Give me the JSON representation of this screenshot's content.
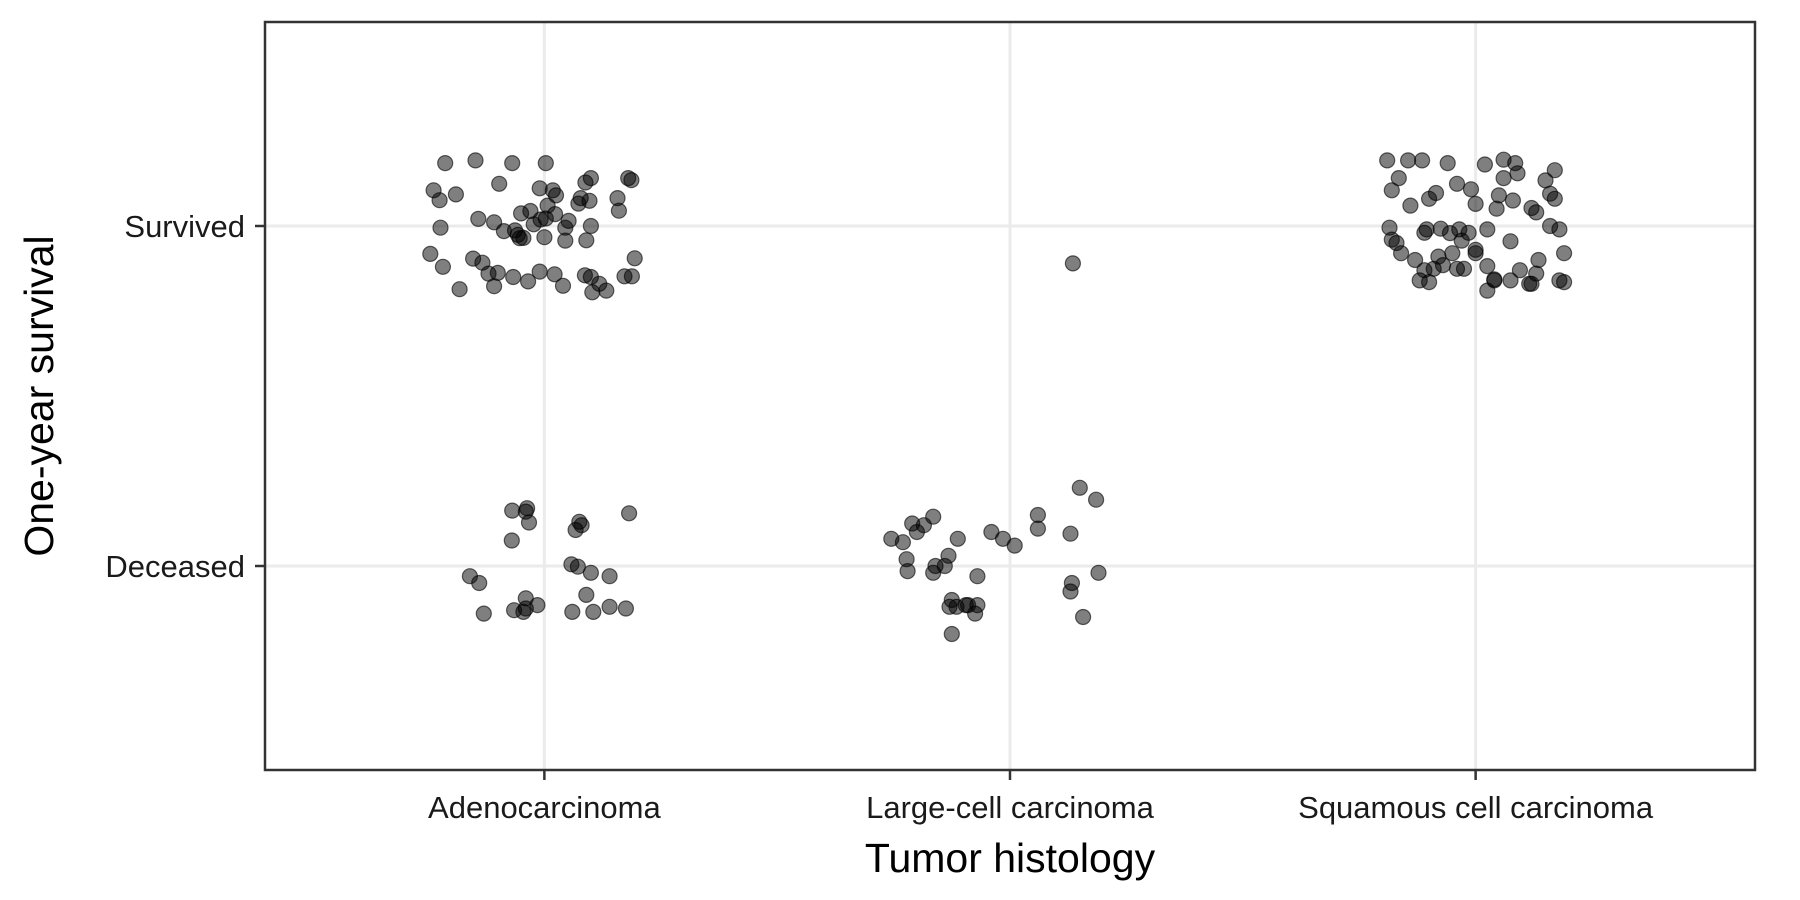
{
  "chart_data": {
    "type": "scatter",
    "subtype": "jitter",
    "title": "",
    "xlabel": "Tumor histology",
    "ylabel": "One-year survival",
    "categories": [
      "Adenocarcinoma",
      "Large-cell carcinoma",
      "Squamous cell carcinoma"
    ],
    "y_levels": [
      "Deceased",
      "Survived"
    ],
    "xlim": [
      0.4,
      3.6
    ],
    "ylim": [
      0.4,
      2.6
    ],
    "grid": true,
    "legend": "none",
    "point_color": "#000000",
    "point_alpha": 0.5,
    "points": [
      {
        "x": 0.762,
        "y": 2.105
      },
      {
        "x": 0.787,
        "y": 2.185
      },
      {
        "x": 0.81,
        "y": 2.093
      },
      {
        "x": 0.852,
        "y": 2.193
      },
      {
        "x": 0.931,
        "y": 2.185
      },
      {
        "x": 1.003,
        "y": 2.185
      },
      {
        "x": 0.775,
        "y": 2.076
      },
      {
        "x": 0.903,
        "y": 2.124
      },
      {
        "x": 0.99,
        "y": 2.111
      },
      {
        "x": 1.018,
        "y": 2.105
      },
      {
        "x": 1.088,
        "y": 2.128
      },
      {
        "x": 1.1,
        "y": 2.141
      },
      {
        "x": 1.18,
        "y": 2.141
      },
      {
        "x": 1.187,
        "y": 2.135
      },
      {
        "x": 1.157,
        "y": 2.082
      },
      {
        "x": 1.16,
        "y": 2.045
      },
      {
        "x": 1.078,
        "y": 2.082
      },
      {
        "x": 1.025,
        "y": 2.09
      },
      {
        "x": 1.007,
        "y": 2.06
      },
      {
        "x": 0.97,
        "y": 2.044
      },
      {
        "x": 0.95,
        "y": 2.037
      },
      {
        "x": 0.858,
        "y": 2.021
      },
      {
        "x": 0.777,
        "y": 1.995
      },
      {
        "x": 0.892,
        "y": 2.011
      },
      {
        "x": 0.937,
        "y": 1.987
      },
      {
        "x": 0.977,
        "y": 2.005
      },
      {
        "x": 0.992,
        "y": 2.019
      },
      {
        "x": 1.003,
        "y": 2.022
      },
      {
        "x": 1.023,
        "y": 2.035
      },
      {
        "x": 1.073,
        "y": 2.066
      },
      {
        "x": 1.097,
        "y": 2.074
      },
      {
        "x": 1.045,
        "y": 1.995
      },
      {
        "x": 1.052,
        "y": 2.015
      },
      {
        "x": 1.1,
        "y": 2.0
      },
      {
        "x": 0.913,
        "y": 1.985
      },
      {
        "x": 0.947,
        "y": 1.964
      },
      {
        "x": 0.943,
        "y": 1.974
      },
      {
        "x": 0.955,
        "y": 1.965
      },
      {
        "x": 1.0,
        "y": 1.967
      },
      {
        "x": 1.045,
        "y": 1.957
      },
      {
        "x": 1.09,
        "y": 1.958
      },
      {
        "x": 0.755,
        "y": 1.918
      },
      {
        "x": 0.847,
        "y": 1.904
      },
      {
        "x": 0.867,
        "y": 1.892
      },
      {
        "x": 0.9,
        "y": 1.862
      },
      {
        "x": 0.933,
        "y": 1.85
      },
      {
        "x": 0.99,
        "y": 1.866
      },
      {
        "x": 1.022,
        "y": 1.858
      },
      {
        "x": 1.087,
        "y": 1.855
      },
      {
        "x": 1.1,
        "y": 1.85
      },
      {
        "x": 0.892,
        "y": 1.823
      },
      {
        "x": 0.965,
        "y": 1.837
      },
      {
        "x": 1.04,
        "y": 1.824
      },
      {
        "x": 1.118,
        "y": 1.83
      },
      {
        "x": 1.133,
        "y": 1.81
      },
      {
        "x": 1.188,
        "y": 1.852
      },
      {
        "x": 1.172,
        "y": 1.852
      },
      {
        "x": 1.103,
        "y": 1.805
      },
      {
        "x": 0.818,
        "y": 1.814
      },
      {
        "x": 0.88,
        "y": 1.86
      },
      {
        "x": 0.782,
        "y": 1.88
      },
      {
        "x": 1.194,
        "y": 1.905
      },
      {
        "x": 2.135,
        "y": 1.89
      },
      {
        "x": 2.81,
        "y": 2.193
      },
      {
        "x": 2.855,
        "y": 2.193
      },
      {
        "x": 2.885,
        "y": 2.193
      },
      {
        "x": 2.94,
        "y": 2.185
      },
      {
        "x": 3.02,
        "y": 2.181
      },
      {
        "x": 3.06,
        "y": 2.195
      },
      {
        "x": 3.085,
        "y": 2.185
      },
      {
        "x": 3.06,
        "y": 2.141
      },
      {
        "x": 3.09,
        "y": 2.155
      },
      {
        "x": 3.17,
        "y": 2.164
      },
      {
        "x": 3.15,
        "y": 2.134
      },
      {
        "x": 2.835,
        "y": 2.141
      },
      {
        "x": 2.96,
        "y": 2.124
      },
      {
        "x": 2.82,
        "y": 2.105
      },
      {
        "x": 2.9,
        "y": 2.08
      },
      {
        "x": 2.86,
        "y": 2.06
      },
      {
        "x": 2.915,
        "y": 2.097
      },
      {
        "x": 2.99,
        "y": 2.108
      },
      {
        "x": 3.05,
        "y": 2.09
      },
      {
        "x": 3.08,
        "y": 2.075
      },
      {
        "x": 3.0,
        "y": 2.065
      },
      {
        "x": 3.045,
        "y": 2.051
      },
      {
        "x": 3.12,
        "y": 2.053
      },
      {
        "x": 3.16,
        "y": 2.095
      },
      {
        "x": 3.17,
        "y": 2.08
      },
      {
        "x": 3.13,
        "y": 2.04
      },
      {
        "x": 2.815,
        "y": 1.995
      },
      {
        "x": 2.895,
        "y": 1.99
      },
      {
        "x": 2.925,
        "y": 1.992
      },
      {
        "x": 2.945,
        "y": 1.979
      },
      {
        "x": 2.965,
        "y": 1.99
      },
      {
        "x": 2.985,
        "y": 1.98
      },
      {
        "x": 3.025,
        "y": 1.99
      },
      {
        "x": 3.16,
        "y": 2.0
      },
      {
        "x": 3.18,
        "y": 1.99
      },
      {
        "x": 2.82,
        "y": 1.96
      },
      {
        "x": 2.83,
        "y": 1.95
      },
      {
        "x": 2.89,
        "y": 1.98
      },
      {
        "x": 2.97,
        "y": 1.957
      },
      {
        "x": 3.075,
        "y": 1.955
      },
      {
        "x": 2.84,
        "y": 1.92
      },
      {
        "x": 2.87,
        "y": 1.9
      },
      {
        "x": 2.92,
        "y": 1.91
      },
      {
        "x": 2.95,
        "y": 1.92
      },
      {
        "x": 3.095,
        "y": 1.87
      },
      {
        "x": 2.93,
        "y": 1.885
      },
      {
        "x": 3.025,
        "y": 1.882
      },
      {
        "x": 3.0,
        "y": 1.93
      },
      {
        "x": 3.0,
        "y": 1.92
      },
      {
        "x": 3.135,
        "y": 1.9
      },
      {
        "x": 3.19,
        "y": 1.92
      },
      {
        "x": 2.91,
        "y": 1.874
      },
      {
        "x": 3.13,
        "y": 1.86
      },
      {
        "x": 3.18,
        "y": 1.84
      },
      {
        "x": 3.19,
        "y": 1.835
      },
      {
        "x": 3.115,
        "y": 1.83
      },
      {
        "x": 3.04,
        "y": 1.843
      },
      {
        "x": 2.96,
        "y": 1.874
      },
      {
        "x": 2.975,
        "y": 1.874
      },
      {
        "x": 2.89,
        "y": 1.87
      },
      {
        "x": 3.04,
        "y": 1.84
      },
      {
        "x": 3.075,
        "y": 1.84
      },
      {
        "x": 3.025,
        "y": 1.81
      },
      {
        "x": 2.9,
        "y": 1.835
      },
      {
        "x": 3.12,
        "y": 1.83
      },
      {
        "x": 2.88,
        "y": 1.84
      },
      {
        "x": 0.931,
        "y": 1.163
      },
      {
        "x": 0.963,
        "y": 1.17
      },
      {
        "x": 0.96,
        "y": 1.16
      },
      {
        "x": 0.93,
        "y": 1.075
      },
      {
        "x": 1.075,
        "y": 1.13
      },
      {
        "x": 1.08,
        "y": 1.12
      },
      {
        "x": 1.182,
        "y": 1.155
      },
      {
        "x": 1.067,
        "y": 1.106
      },
      {
        "x": 0.967,
        "y": 1.128
      },
      {
        "x": 0.84,
        "y": 0.97
      },
      {
        "x": 0.86,
        "y": 0.95
      },
      {
        "x": 1.058,
        "y": 1.005
      },
      {
        "x": 1.072,
        "y": 0.998
      },
      {
        "x": 1.1,
        "y": 0.98
      },
      {
        "x": 1.14,
        "y": 0.97
      },
      {
        "x": 0.96,
        "y": 0.905
      },
      {
        "x": 1.09,
        "y": 0.915
      },
      {
        "x": 0.985,
        "y": 0.885
      },
      {
        "x": 0.96,
        "y": 0.875
      },
      {
        "x": 0.935,
        "y": 0.87
      },
      {
        "x": 0.955,
        "y": 0.865
      },
      {
        "x": 0.87,
        "y": 0.86
      },
      {
        "x": 1.06,
        "y": 0.865
      },
      {
        "x": 1.105,
        "y": 0.865
      },
      {
        "x": 1.175,
        "y": 0.875
      },
      {
        "x": 1.14,
        "y": 0.88
      },
      {
        "x": 1.835,
        "y": 1.145
      },
      {
        "x": 1.815,
        "y": 1.12
      },
      {
        "x": 1.79,
        "y": 1.125
      },
      {
        "x": 1.8,
        "y": 1.1
      },
      {
        "x": 1.745,
        "y": 1.08
      },
      {
        "x": 1.77,
        "y": 1.07
      },
      {
        "x": 1.888,
        "y": 1.08
      },
      {
        "x": 1.96,
        "y": 1.1
      },
      {
        "x": 1.985,
        "y": 1.08
      },
      {
        "x": 2.06,
        "y": 1.11
      },
      {
        "x": 2.06,
        "y": 1.15
      },
      {
        "x": 2.13,
        "y": 1.095
      },
      {
        "x": 2.185,
        "y": 1.195
      },
      {
        "x": 1.84,
        "y": 1.0
      },
      {
        "x": 1.778,
        "y": 1.02
      },
      {
        "x": 1.78,
        "y": 0.985
      },
      {
        "x": 1.835,
        "y": 0.98
      },
      {
        "x": 1.868,
        "y": 1.03
      },
      {
        "x": 1.86,
        "y": 1.0
      },
      {
        "x": 1.905,
        "y": 0.885
      },
      {
        "x": 1.875,
        "y": 0.9
      },
      {
        "x": 1.91,
        "y": 0.885
      },
      {
        "x": 1.885,
        "y": 0.88
      },
      {
        "x": 1.925,
        "y": 0.86
      },
      {
        "x": 1.93,
        "y": 0.885
      },
      {
        "x": 1.87,
        "y": 0.88
      },
      {
        "x": 1.875,
        "y": 0.8
      },
      {
        "x": 2.01,
        "y": 1.06
      },
      {
        "x": 2.13,
        "y": 0.925
      },
      {
        "x": 2.133,
        "y": 0.95
      },
      {
        "x": 2.19,
        "y": 0.98
      },
      {
        "x": 2.157,
        "y": 0.85
      },
      {
        "x": 1.93,
        "y": 0.97
      },
      {
        "x": 2.15,
        "y": 1.23
      }
    ]
  }
}
